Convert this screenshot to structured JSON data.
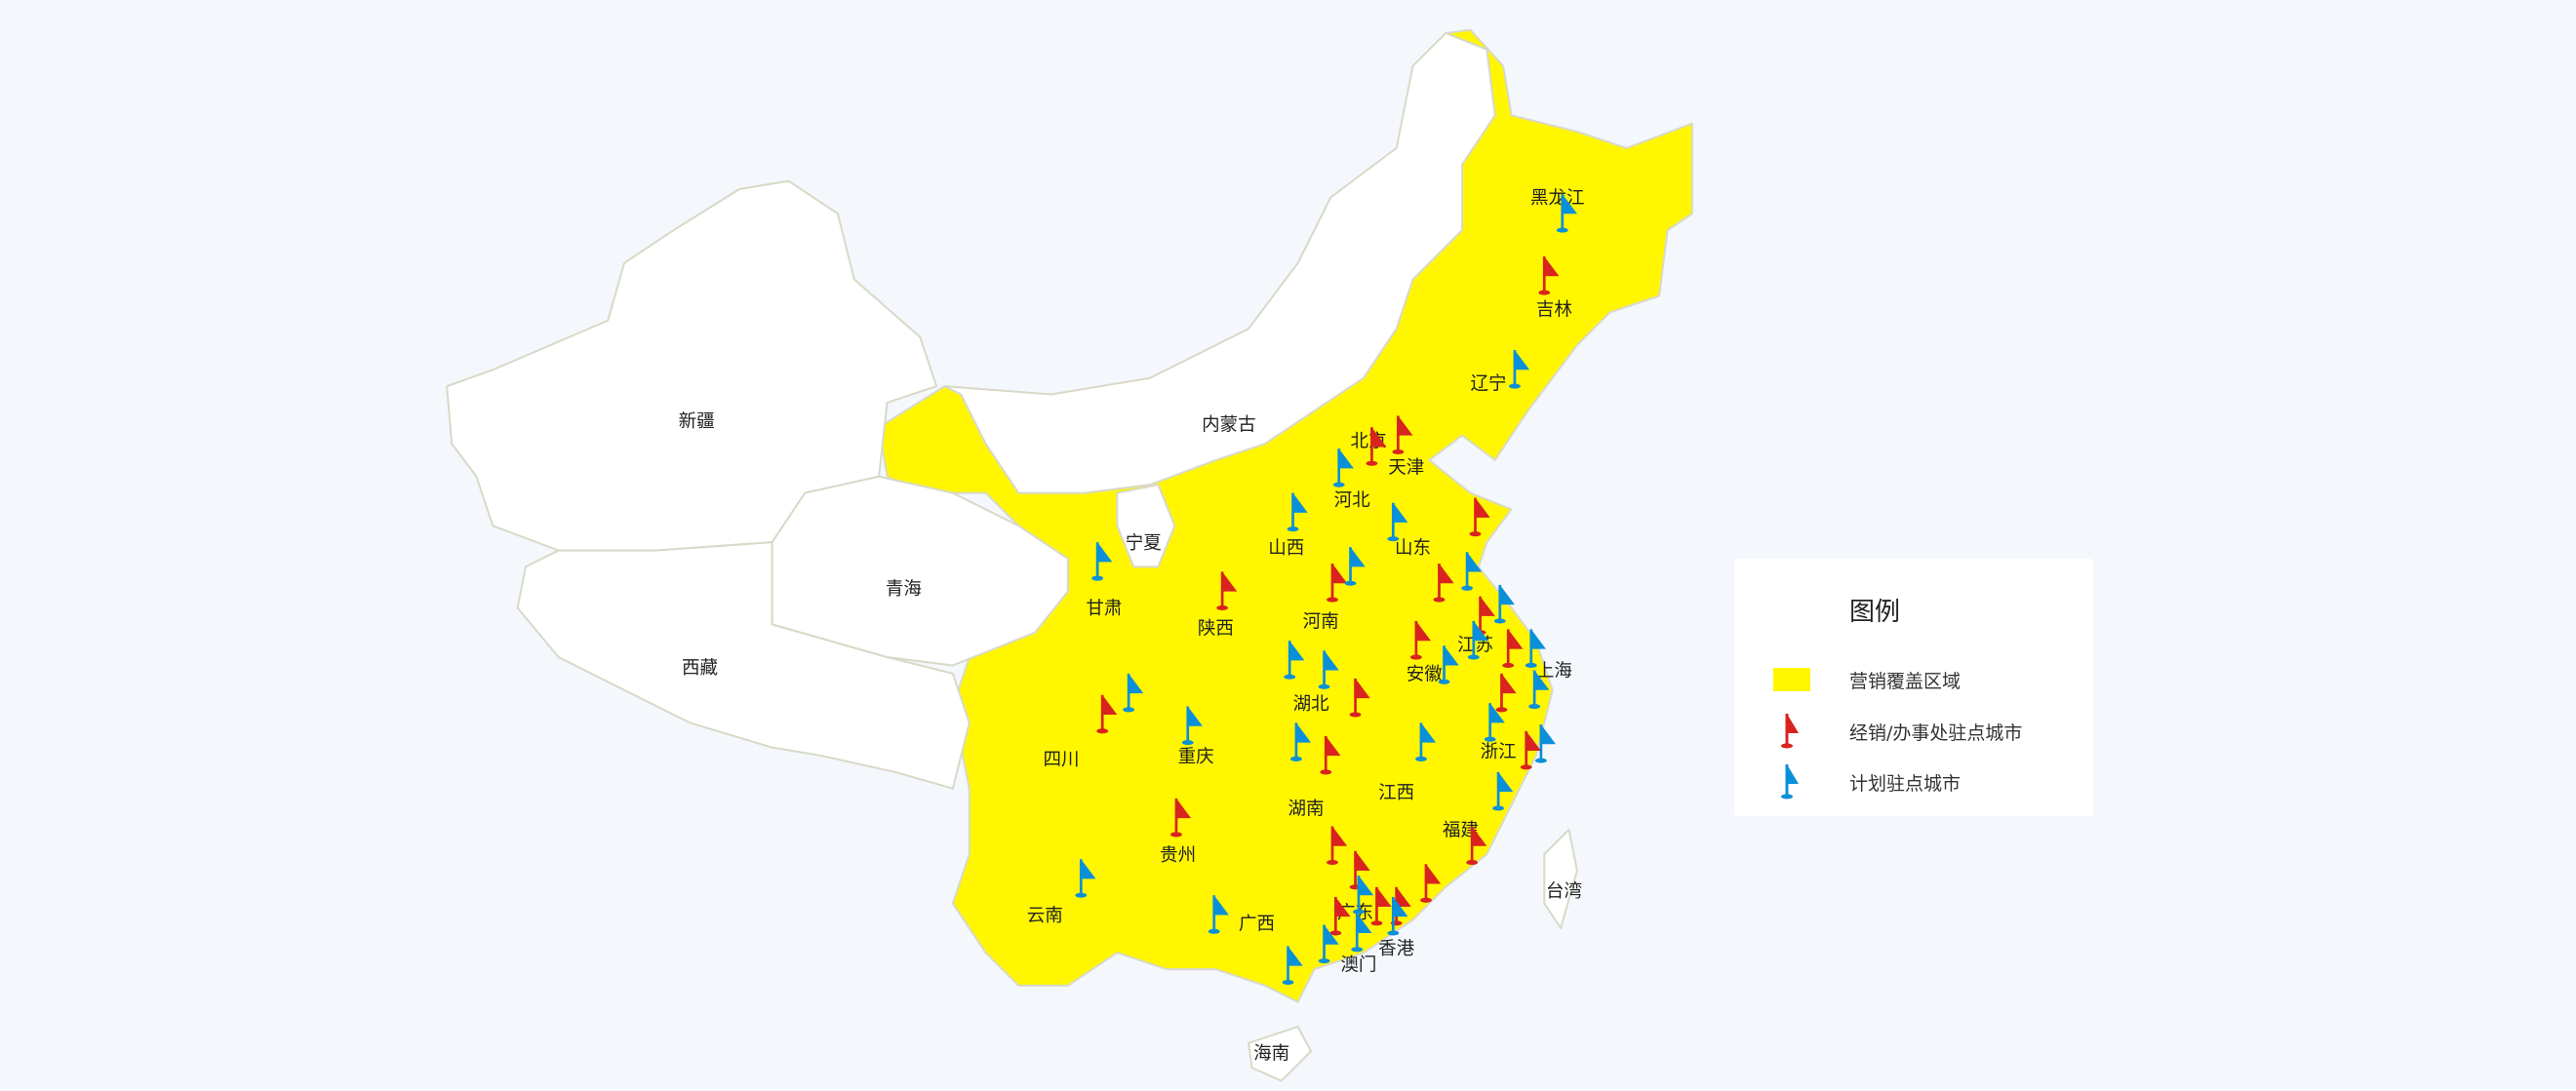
{
  "colors": {
    "covered": "#fff600",
    "uncovered": "#ffffff",
    "dealer_flag": "#d8231f",
    "planned_flag": "#0a90d8",
    "background": "#f4f8fd",
    "border": "#d9d9c8"
  },
  "provinces": {
    "covered": [
      "黑龙江",
      "吉林",
      "辽宁",
      "北京",
      "天津",
      "河北",
      "山西",
      "山东",
      "甘肃",
      "陕西",
      "河南",
      "江苏",
      "上海",
      "安徽",
      "湖北",
      "浙江",
      "四川",
      "重庆",
      "江西",
      "湖南",
      "福建",
      "贵州",
      "云南",
      "广西",
      "广东",
      "香港",
      "澳门"
    ],
    "uncovered": [
      "新疆",
      "西藏",
      "青海",
      "内蒙古",
      "宁夏",
      "台湾",
      "海南"
    ]
  },
  "legend": {
    "title": "图例",
    "items": [
      {
        "label": "营销覆盖区域",
        "icon": "yellow-swatch"
      },
      {
        "label": "经销/办事处驻点城市",
        "icon": "red-flag-icon"
      },
      {
        "label": "计划驻点城市",
        "icon": "blue-flag-icon"
      }
    ]
  },
  "flags": {
    "dealer_count": 28,
    "planned_count": 28
  }
}
